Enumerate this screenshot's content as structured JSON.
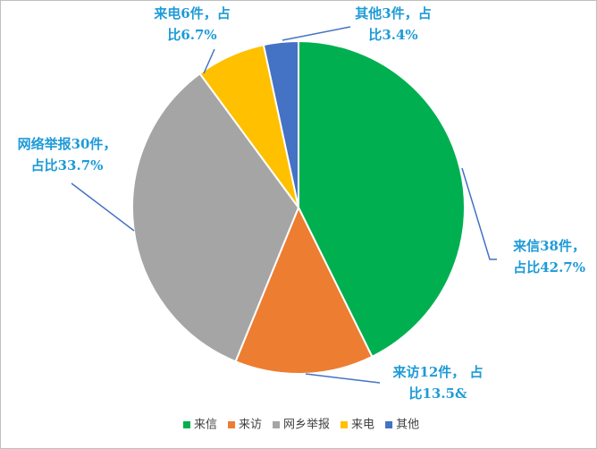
{
  "chart_data": {
    "type": "pie",
    "categories": [
      "来信",
      "来访",
      "网乡举报",
      "来电",
      "其他"
    ],
    "values": [
      38,
      12,
      30,
      6,
      3
    ],
    "value_labels": [
      [
        "来信38件，",
        "占比42.7%"
      ],
      [
        "来访12件， 占",
        "比13.5&"
      ],
      [
        "网络举报30件，",
        "占比33.7%"
      ],
      [
        "来电6件，占",
        "比6.7%"
      ],
      [
        "其他3件，占",
        "比3.4%"
      ]
    ],
    "colors": [
      "#00b050",
      "#ed7d31",
      "#a5a5a5",
      "#ffc000",
      "#4472c4"
    ],
    "legend": "bottom"
  }
}
